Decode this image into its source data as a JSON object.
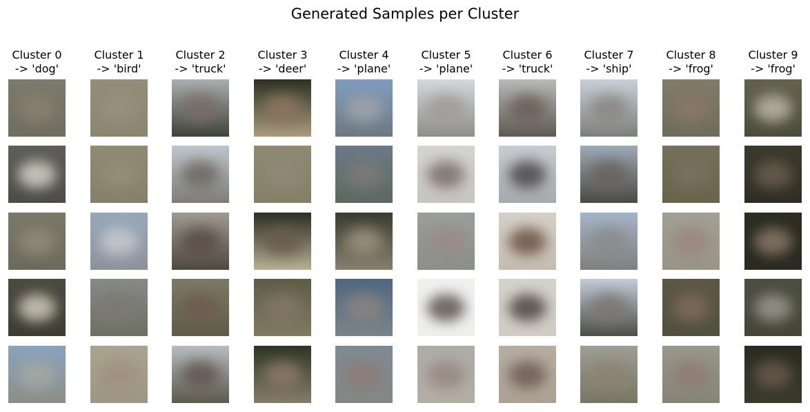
{
  "title": "Generated Samples per Cluster",
  "clusters": [
    {
      "label": "Cluster 0",
      "prediction": "-> 'dog'",
      "samples": [
        {
          "top": "#7c7a6c",
          "bottom": "#6f6d5f",
          "blob": "#8a8070"
        },
        {
          "top": "#5e5e58",
          "bottom": "#4d4c46",
          "blob": "#d6d2c8"
        },
        {
          "top": "#7a7868",
          "bottom": "#6b6a5a",
          "blob": "#8f8a7a"
        },
        {
          "top": "#4c4b40",
          "bottom": "#3d3c33",
          "blob": "#cfcbbc"
        },
        {
          "top": "#89a3bf",
          "bottom": "#8c8e84",
          "blob": "#a4a8a4"
        }
      ]
    },
    {
      "label": "Cluster 1",
      "prediction": "-> 'bird'",
      "samples": [
        {
          "top": "#938e78",
          "bottom": "#8a8670",
          "blob": "#9a9080"
        },
        {
          "top": "#908a72",
          "bottom": "#85806a",
          "blob": "#958e78"
        },
        {
          "top": "#96a8bc",
          "bottom": "#8e929a",
          "blob": "#c8cace"
        },
        {
          "top": "#868a88",
          "bottom": "#6e7062",
          "blob": "#7c7870"
        },
        {
          "top": "#a9a48e",
          "bottom": "#9c9682",
          "blob": "#a09080"
        }
      ]
    },
    {
      "label": "Cluster 2",
      "prediction": "-> 'truck'",
      "samples": [
        {
          "top": "#a9aeb0",
          "bottom": "#3f4237",
          "blob": "#7a6c66"
        },
        {
          "top": "#bec6cc",
          "bottom": "#7e7e76",
          "blob": "#6e6862"
        },
        {
          "top": "#9e9a90",
          "bottom": "#4e4a40",
          "blob": "#5a4c44"
        },
        {
          "top": "#7c7a62",
          "bottom": "#5e5c48",
          "blob": "#6e5c52"
        },
        {
          "top": "#b6bcc0",
          "bottom": "#5c5a4e",
          "blob": "#625650"
        }
      ]
    },
    {
      "label": "Cluster 3",
      "prediction": "-> 'deer'",
      "samples": [
        {
          "top": "#2e3024",
          "bottom": "#a89c7c",
          "blob": "#8c7660"
        },
        {
          "top": "#8e8a72",
          "bottom": "#848068",
          "blob": "#908878"
        },
        {
          "top": "#2c2e24",
          "bottom": "#b8ae94",
          "blob": "#6a5c4c"
        },
        {
          "top": "#5e5c46",
          "bottom": "#807a62",
          "blob": "#84766a"
        },
        {
          "top": "#2e3426",
          "bottom": "#847e68",
          "blob": "#8a7868"
        }
      ]
    },
    {
      "label": "Cluster 4",
      "prediction": "-> 'plane'",
      "samples": [
        {
          "top": "#7e9cc0",
          "bottom": "#6e7880",
          "blob": "#a0a4a8"
        },
        {
          "top": "#6a7a86",
          "bottom": "#5e6860",
          "blob": "#7c7a78"
        },
        {
          "top": "#3a3c30",
          "bottom": "#86806c",
          "blob": "#9c9080"
        },
        {
          "top": "#506680",
          "bottom": "#7a848a",
          "blob": "#8c8480"
        },
        {
          "top": "#7e8a94",
          "bottom": "#848884",
          "blob": "#8c7a76"
        }
      ]
    },
    {
      "label": "Cluster 5",
      "prediction": "-> 'plane'",
      "samples": [
        {
          "top": "#d2d8dc",
          "bottom": "#8e8e8a",
          "blob": "#a09a96"
        },
        {
          "top": "#d4d4d2",
          "bottom": "#c6c4c0",
          "blob": "#7c6e68"
        },
        {
          "top": "#9a9e9a",
          "bottom": "#8c8e88",
          "blob": "#9a8a86"
        },
        {
          "top": "#f0f0ee",
          "bottom": "#eeeeec",
          "blob": "#5c524c"
        },
        {
          "top": "#aeaca6",
          "bottom": "#b2aea4",
          "blob": "#968680"
        }
      ]
    },
    {
      "label": "Cluster 6",
      "prediction": "-> 'truck'",
      "samples": [
        {
          "top": "#b8bab8",
          "bottom": "#5e5a52",
          "blob": "#6e5e58"
        },
        {
          "top": "#c6ccd2",
          "bottom": "#a6aaae",
          "blob": "#4c4848"
        },
        {
          "top": "#d4d0c8",
          "bottom": "#c4bcb0",
          "blob": "#6c5244"
        },
        {
          "top": "#d4d2cc",
          "bottom": "#d0ccc4",
          "blob": "#4e4442"
        },
        {
          "top": "#b6aca0",
          "bottom": "#aca294",
          "blob": "#6c5c54"
        }
      ]
    },
    {
      "label": "Cluster 7",
      "prediction": "-> 'ship'",
      "samples": [
        {
          "top": "#c8d0d8",
          "bottom": "#7e807c",
          "blob": "#8c8684"
        },
        {
          "top": "#9caab8",
          "bottom": "#4c4a42",
          "blob": "#6a625c"
        },
        {
          "top": "#a4b4c8",
          "bottom": "#7e807e",
          "blob": "#8a8a8a"
        },
        {
          "top": "#c2ccd8",
          "bottom": "#4e4e48",
          "blob": "#7a7672"
        },
        {
          "top": "#9e9e94",
          "bottom": "#787662",
          "blob": "#8c8274"
        }
      ]
    },
    {
      "label": "Cluster 8",
      "prediction": "-> 'frog'",
      "samples": [
        {
          "top": "#807c68",
          "bottom": "#6e6c5a",
          "blob": "#8a7868"
        },
        {
          "top": "#757058",
          "bottom": "#68644c",
          "blob": "#7a7060"
        },
        {
          "top": "#a2a092",
          "bottom": "#989486",
          "blob": "#9a8680"
        },
        {
          "top": "#5c5844",
          "bottom": "#50503e",
          "blob": "#806a5c"
        },
        {
          "top": "#9a9888",
          "bottom": "#868474",
          "blob": "#8e7c76"
        }
      ]
    },
    {
      "label": "Cluster 9",
      "prediction": "-> 'frog'",
      "samples": [
        {
          "top": "#62624e",
          "bottom": "#4c4c3c",
          "blob": "#bcb6a8"
        },
        {
          "top": "#3a3a2c",
          "bottom": "#302e24",
          "blob": "#6a5e50"
        },
        {
          "top": "#2c2c22",
          "bottom": "#2a2a20",
          "blob": "#8a7868"
        },
        {
          "top": "#4c4e42",
          "bottom": "#464636",
          "blob": "#9a968c"
        },
        {
          "top": "#2a2a20",
          "bottom": "#3a3a2c",
          "blob": "#6a5a4c"
        }
      ]
    }
  ]
}
